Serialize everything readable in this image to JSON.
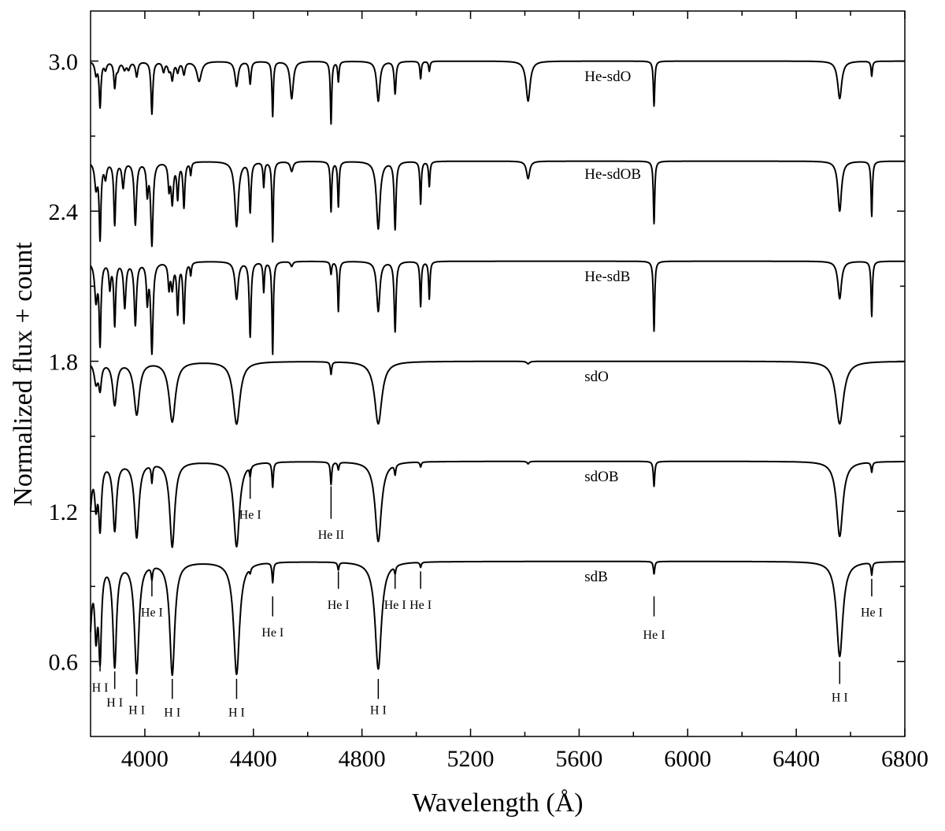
{
  "chart_data": {
    "type": "line",
    "title": "",
    "xlabel": "Wavelength (Å)",
    "ylabel": "Normalized flux + count",
    "xlim": [
      3800,
      6800
    ],
    "ylim": [
      0.3,
      3.2
    ],
    "x_ticks": [
      {
        "value": 4000,
        "label": "4000"
      },
      {
        "value": 4400,
        "label": "4400"
      },
      {
        "value": 4800,
        "label": "4800"
      },
      {
        "value": 5200,
        "label": "5200"
      },
      {
        "value": 5600,
        "label": "5600"
      },
      {
        "value": 6000,
        "label": "6000"
      },
      {
        "value": 6400,
        "label": "6400"
      },
      {
        "value": 6800,
        "label": "6800"
      }
    ],
    "x_minor_ticks": [
      4200,
      4600,
      5000,
      5400,
      5800,
      6200,
      6600
    ],
    "y_ticks": [
      {
        "value": 0.6,
        "label": "0.6"
      },
      {
        "value": 1.2,
        "label": "1.2"
      },
      {
        "value": 1.8,
        "label": "1.8"
      },
      {
        "value": 2.4,
        "label": "2.4"
      },
      {
        "value": 3.0,
        "label": "3.0"
      }
    ],
    "y_minor_ticks": [
      0.9,
      1.5,
      2.1,
      2.7
    ],
    "grid": false,
    "legend": "none",
    "series": [
      {
        "name": "He-sdO",
        "continuum": 3.0,
        "label_x": 5620,
        "label_y": 2.92,
        "lines": [
          [
            3820,
            0.05,
            5
          ],
          [
            3835,
            0.18,
            4
          ],
          [
            3855,
            0.03,
            5
          ],
          [
            3889,
            0.1,
            4
          ],
          [
            3900,
            0.03,
            6
          ],
          [
            3925,
            0.03,
            6
          ],
          [
            3940,
            0.03,
            6
          ],
          [
            3970,
            0.06,
            5
          ],
          [
            4026,
            0.21,
            4
          ],
          [
            4069,
            0.04,
            5
          ],
          [
            4089,
            0.03,
            5
          ],
          [
            4101,
            0.07,
            5
          ],
          [
            4121,
            0.04,
            5
          ],
          [
            4144,
            0.05,
            5
          ],
          [
            4200,
            0.08,
            10
          ],
          [
            4338,
            0.1,
            7
          ],
          [
            4388,
            0.09,
            4
          ],
          [
            4471,
            0.22,
            3
          ],
          [
            4541,
            0.15,
            7
          ],
          [
            4686,
            0.25,
            3
          ],
          [
            4713,
            0.08,
            3
          ],
          [
            4860,
            0.16,
            7
          ],
          [
            4922,
            0.13,
            4
          ],
          [
            5016,
            0.07,
            3
          ],
          [
            5048,
            0.04,
            3
          ],
          [
            5412,
            0.16,
            9
          ],
          [
            5876,
            0.18,
            3
          ],
          [
            6560,
            0.15,
            9
          ],
          [
            6678,
            0.06,
            3
          ]
        ]
      },
      {
        "name": "He-sdOB",
        "continuum": 2.6,
        "label_x": 5620,
        "label_y": 2.53,
        "lines": [
          [
            3820,
            0.1,
            6
          ],
          [
            3835,
            0.3,
            4
          ],
          [
            3855,
            0.06,
            5
          ],
          [
            3889,
            0.25,
            4
          ],
          [
            3920,
            0.1,
            5
          ],
          [
            3965,
            0.25,
            5
          ],
          [
            4009,
            0.12,
            4
          ],
          [
            4026,
            0.33,
            5
          ],
          [
            4089,
            0.1,
            4
          ],
          [
            4101,
            0.16,
            5
          ],
          [
            4121,
            0.14,
            4
          ],
          [
            4144,
            0.18,
            4
          ],
          [
            4169,
            0.05,
            3
          ],
          [
            4338,
            0.26,
            8
          ],
          [
            4388,
            0.2,
            4
          ],
          [
            4438,
            0.1,
            3
          ],
          [
            4471,
            0.32,
            3
          ],
          [
            4541,
            0.04,
            6
          ],
          [
            4686,
            0.2,
            3
          ],
          [
            4713,
            0.18,
            3
          ],
          [
            4860,
            0.27,
            8
          ],
          [
            4922,
            0.27,
            4
          ],
          [
            5016,
            0.17,
            3
          ],
          [
            5048,
            0.1,
            3
          ],
          [
            5412,
            0.07,
            7
          ],
          [
            5876,
            0.25,
            3
          ],
          [
            6560,
            0.2,
            8
          ],
          [
            6678,
            0.22,
            3
          ]
        ]
      },
      {
        "name": "He-sdB",
        "continuum": 2.2,
        "label_x": 5620,
        "label_y": 2.12,
        "lines": [
          [
            3820,
            0.15,
            6
          ],
          [
            3835,
            0.32,
            4
          ],
          [
            3871,
            0.1,
            4
          ],
          [
            3889,
            0.25,
            4
          ],
          [
            3926,
            0.18,
            5
          ],
          [
            3965,
            0.25,
            5
          ],
          [
            4009,
            0.15,
            4
          ],
          [
            4026,
            0.36,
            5
          ],
          [
            4089,
            0.1,
            4
          ],
          [
            4101,
            0.1,
            5
          ],
          [
            4121,
            0.2,
            4
          ],
          [
            4144,
            0.24,
            4
          ],
          [
            4169,
            0.05,
            3
          ],
          [
            4338,
            0.15,
            7
          ],
          [
            4388,
            0.3,
            4
          ],
          [
            4438,
            0.12,
            3
          ],
          [
            4471,
            0.37,
            3
          ],
          [
            4541,
            0.02,
            5
          ],
          [
            4686,
            0.05,
            3
          ],
          [
            4713,
            0.2,
            3
          ],
          [
            4860,
            0.2,
            7
          ],
          [
            4922,
            0.28,
            4
          ],
          [
            5016,
            0.18,
            3
          ],
          [
            5048,
            0.15,
            3
          ],
          [
            5876,
            0.28,
            3
          ],
          [
            6560,
            0.15,
            8
          ],
          [
            6678,
            0.22,
            3
          ]
        ]
      },
      {
        "name": "sdO",
        "continuum": 1.8,
        "label_x": 5620,
        "label_y": 1.72,
        "lines": [
          [
            3820,
            0.08,
            8
          ],
          [
            3835,
            0.1,
            6
          ],
          [
            3889,
            0.17,
            9
          ],
          [
            3970,
            0.21,
            12
          ],
          [
            4101,
            0.24,
            14
          ],
          [
            4338,
            0.25,
            15
          ],
          [
            4686,
            0.05,
            3
          ],
          [
            4860,
            0.25,
            16
          ],
          [
            5412,
            0.01,
            6
          ],
          [
            6560,
            0.25,
            17
          ]
        ]
      },
      {
        "name": "sdOB",
        "continuum": 1.4,
        "label_x": 5620,
        "label_y": 1.32,
        "lines": [
          [
            3797,
            0.2,
            8
          ],
          [
            3820,
            0.15,
            6
          ],
          [
            3835,
            0.25,
            6
          ],
          [
            3889,
            0.27,
            8
          ],
          [
            3970,
            0.3,
            10
          ],
          [
            4026,
            0.07,
            3
          ],
          [
            4101,
            0.34,
            11
          ],
          [
            4338,
            0.34,
            13
          ],
          [
            4388,
            0.04,
            3
          ],
          [
            4471,
            0.1,
            3
          ],
          [
            4686,
            0.09,
            3
          ],
          [
            4713,
            0.03,
            3
          ],
          [
            4860,
            0.32,
            14
          ],
          [
            4922,
            0.04,
            3
          ],
          [
            5016,
            0.02,
            3
          ],
          [
            5412,
            0.01,
            4
          ],
          [
            5876,
            0.1,
            3
          ],
          [
            6560,
            0.3,
            14
          ],
          [
            6678,
            0.04,
            3
          ]
        ]
      },
      {
        "name": "sdB",
        "continuum": 1.0,
        "label_x": 5620,
        "label_y": 0.92,
        "lines": [
          [
            3797,
            0.28,
            8
          ],
          [
            3820,
            0.25,
            6
          ],
          [
            3835,
            0.36,
            6
          ],
          [
            3889,
            0.41,
            8
          ],
          [
            3970,
            0.44,
            10
          ],
          [
            4026,
            0.05,
            3
          ],
          [
            4101,
            0.45,
            11
          ],
          [
            4338,
            0.45,
            13
          ],
          [
            4388,
            0.02,
            3
          ],
          [
            4471,
            0.08,
            3
          ],
          [
            4713,
            0.03,
            3
          ],
          [
            4860,
            0.43,
            14
          ],
          [
            4922,
            0.03,
            3
          ],
          [
            5016,
            0.02,
            3
          ],
          [
            5876,
            0.05,
            3
          ],
          [
            6560,
            0.38,
            14
          ],
          [
            6678,
            0.05,
            3
          ]
        ]
      }
    ],
    "annotations": [
      {
        "text": "He I",
        "x": 4388,
        "y_top": 1.37,
        "y_bot": 1.25,
        "label_y": 1.17
      },
      {
        "text": "He II",
        "x": 4686,
        "y_top": 1.3,
        "y_bot": 1.17,
        "label_y": 1.09
      },
      {
        "text": "He I",
        "x": 4026,
        "y_top": 0.93,
        "y_bot": 0.86,
        "label_y": 0.78
      },
      {
        "text": "He I",
        "x": 4471,
        "y_top": 0.86,
        "y_bot": 0.78,
        "label_y": 0.7
      },
      {
        "text": "He I",
        "x": 4713,
        "y_top": 0.96,
        "y_bot": 0.89,
        "label_y": 0.81
      },
      {
        "text": "He I",
        "x": 4922,
        "y_top": 0.96,
        "y_bot": 0.89,
        "label_y": 0.81
      },
      {
        "text": "He I",
        "x": 5016,
        "y_top": 0.96,
        "y_bot": 0.89,
        "label_y": 0.81
      },
      {
        "text": "He I",
        "x": 5876,
        "y_top": 0.86,
        "y_bot": 0.78,
        "label_y": 0.69
      },
      {
        "text": "He I",
        "x": 6678,
        "y_top": 0.93,
        "y_bot": 0.86,
        "label_y": 0.78
      },
      {
        "text": "H I",
        "x": 3835,
        "y_top": 0.61,
        "y_bot": 0.56,
        "label_y": 0.48
      },
      {
        "text": "H I",
        "x": 3889,
        "y_top": 0.56,
        "y_bot": 0.49,
        "label_y": 0.42
      },
      {
        "text": "H I",
        "x": 3970,
        "y_top": 0.53,
        "y_bot": 0.46,
        "label_y": 0.39
      },
      {
        "text": "H I",
        "x": 4101,
        "y_top": 0.53,
        "y_bot": 0.45,
        "label_y": 0.38
      },
      {
        "text": "H I",
        "x": 4338,
        "y_top": 0.53,
        "y_bot": 0.45,
        "label_y": 0.38
      },
      {
        "text": "H I",
        "x": 4860,
        "y_top": 0.53,
        "y_bot": 0.45,
        "label_y": 0.39
      },
      {
        "text": "H I",
        "x": 6560,
        "y_top": 0.6,
        "y_bot": 0.51,
        "label_y": 0.44
      }
    ]
  }
}
